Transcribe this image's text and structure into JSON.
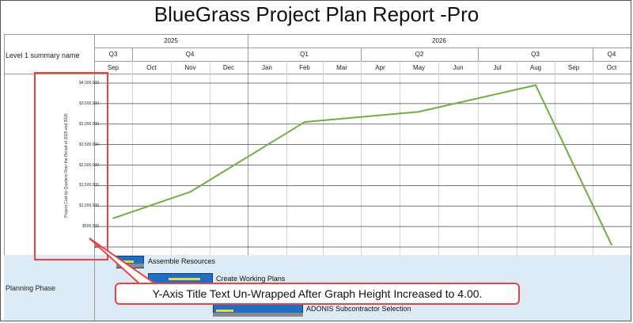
{
  "report": {
    "title": "BlueGrass Project Plan Report -Pro",
    "row_label": "Level 1 summary name",
    "phase_label": "Planning Phase"
  },
  "timeline": {
    "years": [
      "2025",
      "2026"
    ],
    "quarters": [
      "Q3",
      "Q4",
      "Q1",
      "Q2",
      "Q3",
      "Q4"
    ],
    "months": [
      "Sep",
      "Oct",
      "Nov",
      "Dec",
      "Jan",
      "Feb",
      "Mar",
      "Apr",
      "May",
      "Jun",
      "Jul",
      "Aug",
      "Sep",
      "Oct"
    ]
  },
  "chart_data": {
    "type": "line",
    "y_title": "Project Cost by Quarters Over the Period of 2025 and 2026",
    "y_tick_labels": [
      "$4,000,000",
      "$3,500,000",
      "$3,000,000",
      "$2,500,000",
      "$2,000,000",
      "$1,500,000",
      "$1,000,000",
      "$500,000",
      "$0"
    ],
    "ylim": [
      0,
      4000000
    ],
    "grid": true,
    "series": [
      {
        "color": "#70ad47",
        "x": [
          "Sep 2025",
          "Nov 2025",
          "Feb 2026",
          "May 2026",
          "Aug 2026",
          "Oct 2026"
        ],
        "values": [
          700000,
          1350000,
          3050000,
          3300000,
          3950000,
          50000
        ]
      }
    ]
  },
  "tasks": [
    {
      "name": "Assemble Resources"
    },
    {
      "name": "Create Working Plans"
    },
    {
      "name": "ADONIS Subcontractor Selection"
    }
  ],
  "annotation": {
    "callout_text": "Y-Axis Title Text Un-Wrapped After Graph Height Increased to 4.00.",
    "highlight_color": "#e64545"
  }
}
